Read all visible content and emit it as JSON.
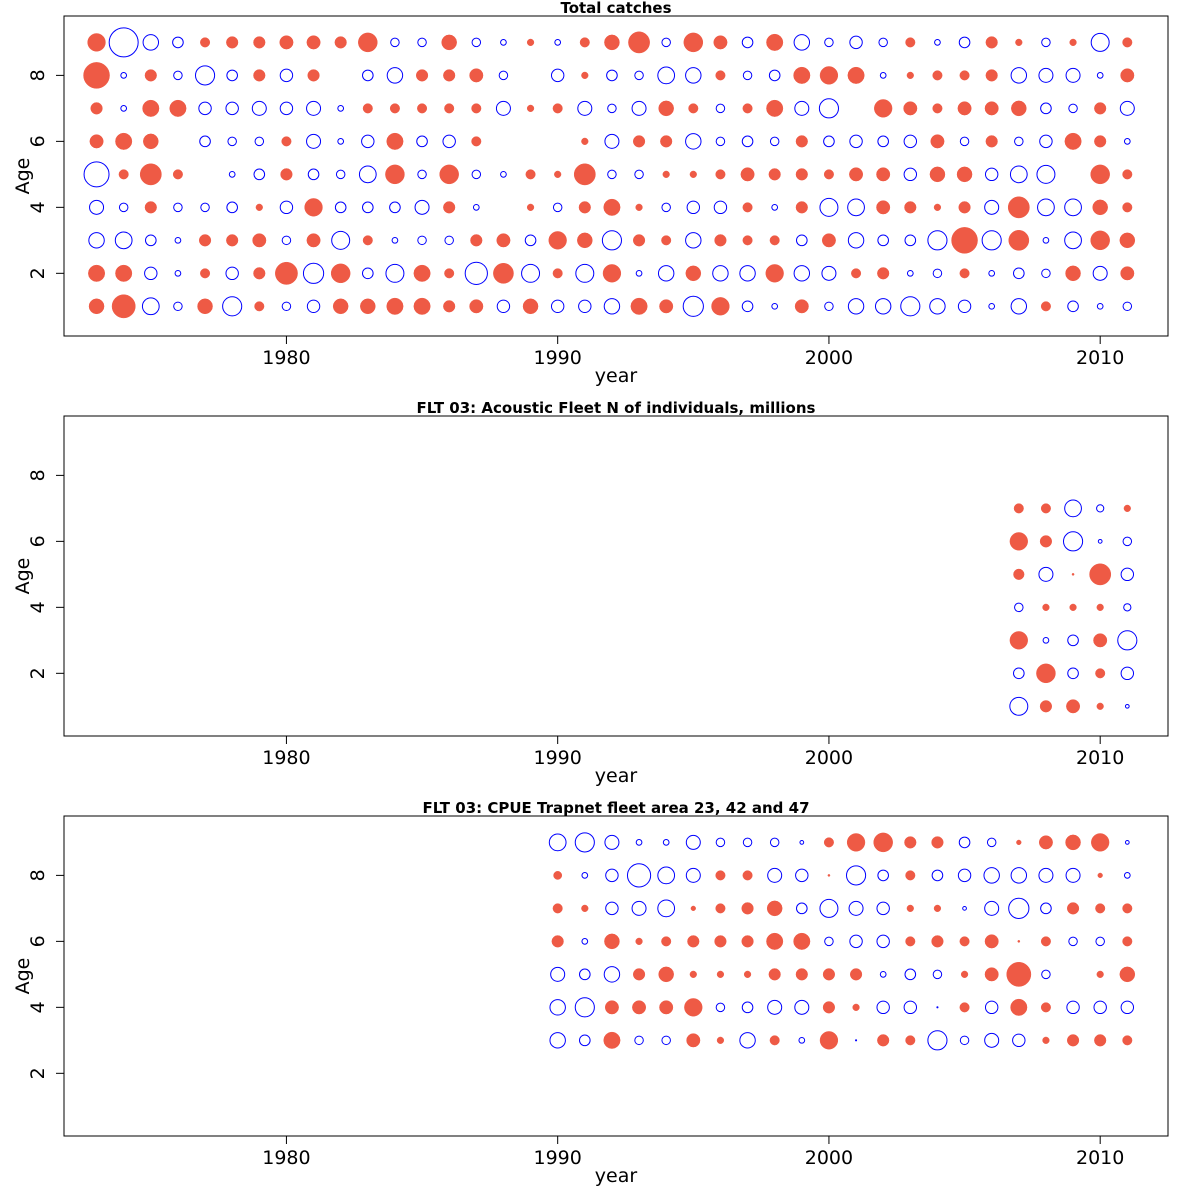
{
  "chart_data": [
    {
      "type": "bubble",
      "title": "Total catches",
      "xlabel": "year",
      "ylabel": "Age",
      "xlim": [
        1971.8,
        2012.5
      ],
      "ylim": [
        0.1,
        9.8
      ],
      "xticks": [
        1980,
        1990,
        2000,
        2010
      ],
      "yticks": [
        2,
        4,
        6,
        8
      ],
      "colors": {
        "positive": "#ee5a45",
        "negative": "#0000ff"
      },
      "encoding": "value = signed residual; positive = filled red, negative = open blue; radius proportional to sqrt(|value|)",
      "years_start": 1973,
      "ages_start": 1,
      "rows": [
        [
          0.5,
          1.2,
          -0.7,
          -0.2,
          0.5,
          -0.9,
          0.2,
          -0.2,
          -0.4,
          0.5,
          0.5,
          0.6,
          0.6,
          0.3,
          0.4,
          -0.4,
          0.5,
          -0.4,
          -0.4,
          -0.6,
          0.6,
          0.4,
          -1.0,
          0.7,
          -0.3,
          -0.1,
          0.4,
          -0.2,
          -0.6,
          -0.6,
          -0.9,
          -0.6,
          -0.4,
          -0.1,
          -0.6,
          0.2,
          -0.3,
          -0.1,
          -0.2
        ],
        [
          0.6,
          0.6,
          -0.4,
          -0.1,
          0.2,
          -0.4,
          0.3,
          1.1,
          -1.0,
          0.8,
          -0.3,
          -0.8,
          0.6,
          0.2,
          -1.2,
          0.9,
          -0.8,
          0.2,
          -0.8,
          0.7,
          -0.1,
          -0.6,
          0.5,
          -0.6,
          -0.6,
          0.7,
          -0.6,
          -0.5,
          0.2,
          0.3,
          -0.1,
          -0.2,
          0.2,
          -0.1,
          -0.3,
          -0.2,
          0.5,
          -0.5,
          0.4
        ],
        [
          -0.6,
          -0.7,
          -0.3,
          -0.1,
          0.3,
          0.3,
          0.4,
          -0.2,
          0.4,
          -0.8,
          0.2,
          -0.1,
          -0.2,
          -0.2,
          0.3,
          0.4,
          -0.3,
          0.7,
          0.5,
          -0.9,
          0.3,
          0.2,
          -0.6,
          0.3,
          0.2,
          0.2,
          -0.3,
          0.4,
          -0.6,
          -0.3,
          -0.3,
          -0.9,
          1.5,
          -0.9,
          0.9,
          -0.1,
          -0.7,
          0.8,
          0.5
        ],
        [
          -0.5,
          -0.2,
          0.3,
          -0.2,
          -0.2,
          -0.3,
          0.1,
          -0.4,
          0.7,
          -0.3,
          -0.3,
          -0.3,
          -0.5,
          0.3,
          -0.1,
          0.0,
          0.1,
          -0.2,
          0.3,
          0.6,
          0.1,
          -0.2,
          -0.4,
          -0.4,
          0.2,
          -0.1,
          0.3,
          -0.8,
          -0.7,
          0.4,
          0.3,
          0.1,
          0.3,
          -0.5,
          1.0,
          -0.7,
          -0.7,
          0.5,
          0.2
        ],
        [
          -1.5,
          0.2,
          1.0,
          0.2,
          0.0,
          -0.1,
          -0.3,
          0.3,
          -0.3,
          -0.2,
          -0.7,
          0.8,
          -0.2,
          0.8,
          -0.2,
          -0.1,
          0.2,
          0.1,
          1.0,
          -0.2,
          -0.2,
          0.1,
          0.1,
          0.2,
          0.4,
          0.3,
          0.3,
          0.2,
          0.4,
          0.4,
          -0.4,
          0.5,
          0.5,
          -0.4,
          -0.7,
          -0.8,
          0.0,
          0.8,
          0.2
        ],
        [
          0.4,
          0.6,
          0.5,
          0.0,
          -0.3,
          -0.2,
          -0.2,
          0.2,
          -0.5,
          -0.1,
          -0.4,
          0.6,
          -0.3,
          -0.4,
          0.2,
          0.0,
          0.0,
          0.0,
          0.1,
          -0.5,
          0.3,
          0.3,
          -0.6,
          -0.2,
          -0.3,
          -0.2,
          0.3,
          -0.3,
          -0.4,
          -0.3,
          -0.4,
          0.4,
          -0.2,
          0.3,
          -0.2,
          -0.4,
          0.6,
          0.3,
          -0.1
        ],
        [
          0.3,
          -0.1,
          0.6,
          0.6,
          -0.4,
          -0.4,
          -0.5,
          -0.4,
          -0.5,
          -0.1,
          0.2,
          0.2,
          0.2,
          0.2,
          0.2,
          -0.5,
          0.1,
          0.2,
          -0.5,
          -0.2,
          -0.5,
          0.5,
          0.2,
          -0.2,
          0.2,
          0.6,
          -0.5,
          -0.9,
          0.0,
          0.7,
          0.4,
          0.2,
          0.4,
          0.4,
          0.5,
          -0.3,
          -0.2,
          0.3,
          -0.5
        ],
        [
          1.5,
          -0.1,
          0.3,
          -0.2,
          -0.9,
          -0.3,
          0.3,
          -0.4,
          0.3,
          0.0,
          -0.3,
          -0.6,
          0.3,
          0.3,
          0.4,
          -0.2,
          0.0,
          -0.4,
          0.1,
          -0.3,
          -0.2,
          -0.7,
          -0.6,
          0.2,
          -0.2,
          -0.3,
          0.6,
          0.7,
          0.6,
          -0.1,
          0.1,
          0.2,
          0.2,
          0.3,
          -0.6,
          -0.5,
          -0.5,
          -0.1,
          0.4
        ],
        [
          0.7,
          -2.0,
          -0.6,
          -0.3,
          0.2,
          0.3,
          0.3,
          0.4,
          0.4,
          0.3,
          0.8,
          -0.2,
          -0.2,
          0.5,
          -0.2,
          -0.1,
          0.1,
          -0.1,
          0.2,
          0.5,
          1.0,
          -0.2,
          0.8,
          0.4,
          -0.3,
          0.6,
          -0.6,
          -0.2,
          -0.4,
          -0.2,
          0.2,
          -0.1,
          -0.3,
          0.3,
          0.1,
          -0.2,
          0.1,
          -0.8,
          0.2
        ]
      ]
    },
    {
      "type": "bubble",
      "title": "FLT 03: Acoustic Fleet  N of individuals, millions",
      "xlabel": "year",
      "ylabel": "Age",
      "xlim": [
        1971.8,
        2012.5
      ],
      "ylim": [
        0.1,
        9.8
      ],
      "xticks": [
        1980,
        1990,
        2000,
        2010
      ],
      "yticks": [
        2,
        4,
        6,
        8
      ],
      "colors": {
        "positive": "#ee5a45",
        "negative": "#0000ff"
      },
      "years_start": 2007,
      "ages_start": 1,
      "rows": [
        [
          -0.8,
          0.3,
          0.4,
          0.1,
          -0.05
        ],
        [
          -0.3,
          0.8,
          -0.3,
          0.2,
          -0.4
        ],
        [
          0.7,
          -0.1,
          -0.3,
          0.4,
          -0.9
        ],
        [
          -0.2,
          0.1,
          0.1,
          0.1,
          -0.15
        ],
        [
          0.25,
          -0.5,
          0.01,
          1.0,
          -0.4
        ],
        [
          0.7,
          0.3,
          -0.9,
          -0.05,
          -0.2
        ],
        [
          0.2,
          0.2,
          -0.7,
          -0.15,
          0.1
        ]
      ]
    },
    {
      "type": "bubble",
      "title": "FLT 03: CPUE Trapnet fleet area 23, 42 and 47",
      "xlabel": "year",
      "ylabel": "Age",
      "xlim": [
        1971.8,
        2012.5
      ],
      "ylim": [
        0.1,
        9.8
      ],
      "xticks": [
        1980,
        1990,
        2000,
        2010
      ],
      "yticks": [
        2,
        4,
        6,
        8
      ],
      "colors": {
        "positive": "#ee5a45",
        "negative": "#0000ff"
      },
      "years_start": 1990,
      "ages_start": 3,
      "rows": [
        [
          -0.6,
          -0.3,
          0.6,
          -0.2,
          -0.2,
          0.4,
          0.1,
          -0.6,
          0.2,
          -0.1,
          0.7,
          -0.01,
          0.3,
          0.2,
          -0.9,
          -0.2,
          -0.5,
          -0.4,
          0.1,
          0.3,
          0.3,
          0.2
        ],
        [
          -0.6,
          -0.9,
          0.4,
          0.4,
          0.4,
          0.7,
          -0.2,
          -0.3,
          -0.5,
          -0.5,
          0.3,
          0.1,
          -0.4,
          -0.4,
          -0.01,
          0.2,
          -0.4,
          0.6,
          0.2,
          -0.4,
          -0.4,
          -0.4
        ],
        [
          -0.5,
          -0.3,
          -0.6,
          0.3,
          0.5,
          0.1,
          0.1,
          0.1,
          0.3,
          0.3,
          0.3,
          0.3,
          -0.1,
          -0.3,
          -0.2,
          0.1,
          0.4,
          1.3,
          -0.2,
          0.0,
          0.1,
          0.5
        ],
        [
          0.3,
          -0.1,
          0.5,
          0.1,
          0.2,
          0.3,
          0.3,
          0.3,
          0.6,
          0.6,
          -0.2,
          -0.4,
          -0.4,
          0.2,
          0.3,
          0.2,
          0.4,
          0.01,
          0.2,
          -0.2,
          -0.2,
          0.2
        ],
        [
          0.2,
          0.1,
          -0.4,
          -0.5,
          -0.7,
          0.05,
          0.2,
          0.3,
          0.5,
          -0.3,
          -0.8,
          -0.5,
          -0.4,
          0.1,
          0.1,
          -0.05,
          -0.5,
          -1.0,
          -0.3,
          0.3,
          0.2,
          0.2
        ],
        [
          0.15,
          -0.1,
          -0.4,
          -1.3,
          -0.7,
          -0.5,
          0.2,
          0.2,
          -0.5,
          -0.4,
          0.01,
          -0.9,
          -0.3,
          0.2,
          -0.3,
          -0.4,
          -0.6,
          -0.6,
          -0.5,
          -0.5,
          0.05,
          -0.1
        ],
        [
          -0.7,
          -0.9,
          -0.5,
          -0.1,
          -0.1,
          -0.5,
          -0.2,
          -0.2,
          -0.2,
          -0.05,
          0.2,
          0.7,
          0.8,
          0.3,
          0.3,
          -0.3,
          -0.2,
          0.05,
          0.4,
          0.5,
          0.7,
          -0.05
        ]
      ]
    }
  ]
}
